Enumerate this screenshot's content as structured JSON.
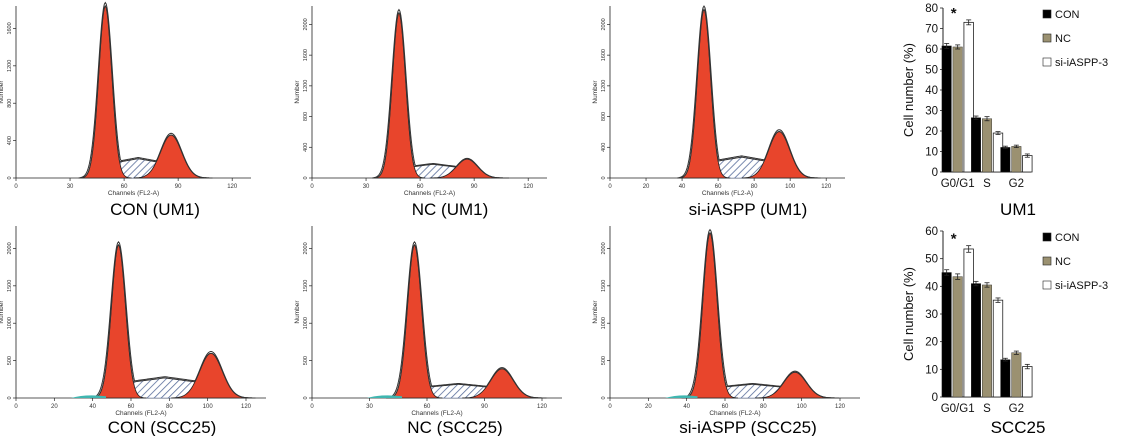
{
  "histogram_axis": {
    "ylabel": "Number",
    "xlabel": "Channels (FL2-A)"
  },
  "histograms": [
    {
      "caption": "CON (UM1)",
      "x_ticks": [
        "0",
        "30",
        "60",
        "90",
        "120"
      ],
      "y_ticks": [
        "0",
        "400",
        "800",
        "1200",
        "1600"
      ],
      "teal_tail": false
    },
    {
      "caption": "NC (UM1)",
      "x_ticks": [
        "0",
        "30",
        "60",
        "90",
        "120"
      ],
      "y_ticks": [
        "0",
        "400",
        "800",
        "1200",
        "1600",
        "2000"
      ],
      "teal_tail": false
    },
    {
      "caption": "si-iASPP (UM1)",
      "x_ticks": [
        "0",
        "20",
        "40",
        "60",
        "80",
        "100",
        "120"
      ],
      "y_ticks": [
        "0",
        "400",
        "800",
        "1200",
        "1600",
        "2000"
      ],
      "teal_tail": false
    },
    {
      "caption": "CON (SCC25)",
      "x_ticks": [
        "0",
        "20",
        "40",
        "60",
        "80",
        "100",
        "120"
      ],
      "y_ticks": [
        "0",
        "500",
        "1000",
        "1500",
        "2000"
      ],
      "teal_tail": true
    },
    {
      "caption": "NC (SCC25)",
      "x_ticks": [
        "0",
        "30",
        "60",
        "90",
        "120"
      ],
      "y_ticks": [
        "0",
        "500",
        "1000",
        "1500",
        "2000"
      ],
      "teal_tail": true
    },
    {
      "caption": "si-iASPP (SCC25)",
      "x_ticks": [
        "0",
        "20",
        "40",
        "60",
        "80",
        "100",
        "120"
      ],
      "y_ticks": [
        "0",
        "500",
        "1000",
        "1500",
        "2000"
      ],
      "teal_tail": true
    }
  ],
  "chart_data": [
    {
      "type": "bar",
      "title": "UM1",
      "ylabel": "Cell number (%)",
      "categories": [
        "G0/G1",
        "S",
        "G2"
      ],
      "ylim": [
        0,
        80
      ],
      "yticks": [
        0,
        10,
        20,
        30,
        40,
        50,
        60,
        70,
        80
      ],
      "legend_position": "right",
      "annotation": "*",
      "series": [
        {
          "name": "CON",
          "color": "#000000",
          "values": [
            61.5,
            26.5,
            12.0
          ],
          "errors": [
            1.2,
            0.8,
            0.6
          ]
        },
        {
          "name": "NC",
          "color": "#9b9171",
          "values": [
            61.0,
            26.0,
            12.5
          ],
          "errors": [
            1.0,
            1.0,
            0.6
          ]
        },
        {
          "name": "si-iASPP-3",
          "color": "#ffffff",
          "values": [
            73.0,
            19.0,
            8.0
          ],
          "errors": [
            1.2,
            0.7,
            0.8
          ]
        }
      ]
    },
    {
      "type": "bar",
      "title": "SCC25",
      "ylabel": "Cell number (%)",
      "categories": [
        "G0/G1",
        "S",
        "G2"
      ],
      "ylim": [
        0,
        60
      ],
      "yticks": [
        0,
        10,
        20,
        30,
        40,
        50,
        60
      ],
      "legend_position": "right",
      "annotation": "*",
      "series": [
        {
          "name": "CON",
          "color": "#000000",
          "values": [
            45.0,
            41.0,
            13.5
          ],
          "errors": [
            1.0,
            0.8,
            0.5
          ]
        },
        {
          "name": "NC",
          "color": "#9b9171",
          "values": [
            43.5,
            40.5,
            16.0
          ],
          "errors": [
            1.0,
            0.8,
            0.6
          ]
        },
        {
          "name": "si-iASPP-3",
          "color": "#ffffff",
          "values": [
            53.5,
            35.0,
            11.0
          ],
          "errors": [
            1.2,
            0.8,
            0.8
          ]
        }
      ]
    }
  ],
  "colors": {
    "peak_fill": "#e8452c",
    "hatch": "#5a6f9c",
    "teal": "#3fb6b0",
    "outline": "#333333"
  }
}
